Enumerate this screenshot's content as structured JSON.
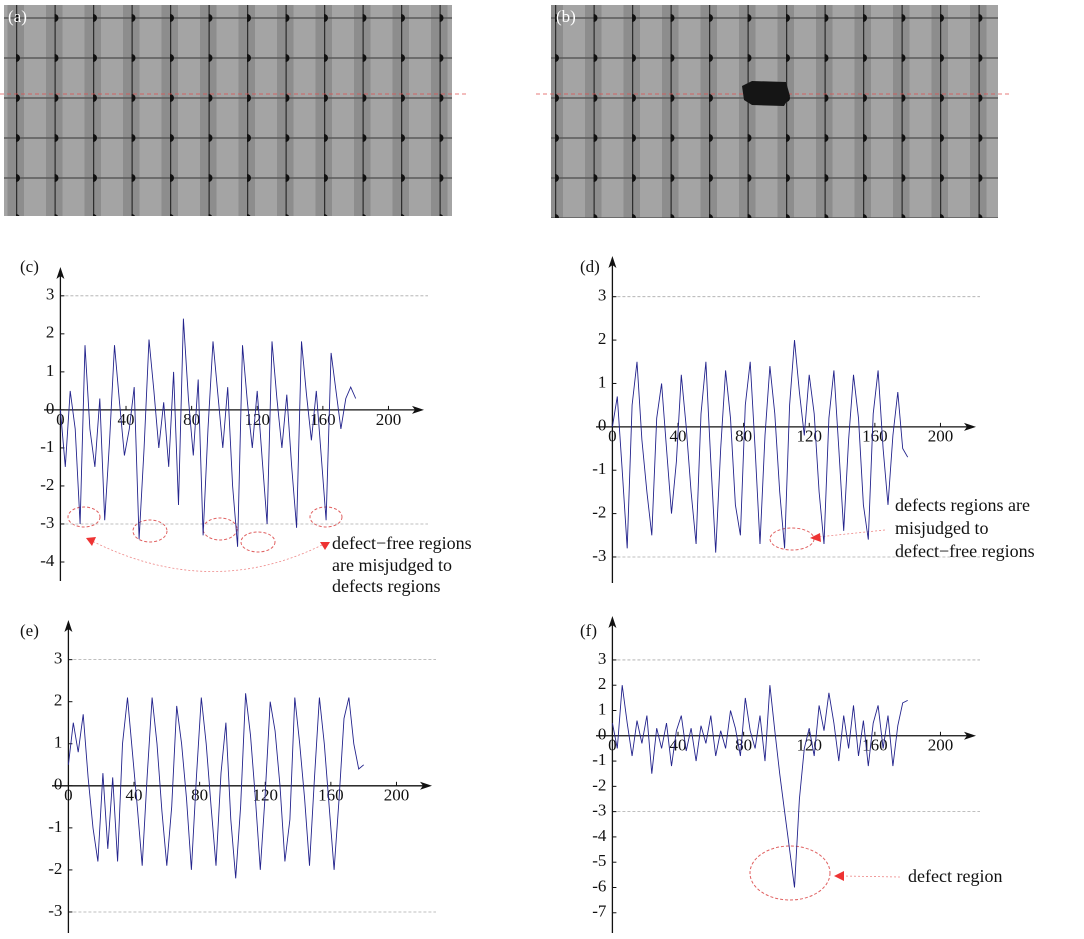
{
  "panels": [
    {
      "label": "(a)"
    },
    {
      "label": "(b)"
    }
  ],
  "chart_data": [
    {
      "type": "line",
      "label": "(c)",
      "color": "#23238c",
      "xlim": [
        -10,
        218
      ],
      "ylim": [
        -4.5,
        3.6
      ],
      "xticks": [
        0,
        40,
        80,
        120,
        160,
        200
      ],
      "yticks": [
        3,
        2,
        1,
        0,
        -1,
        -2,
        -3,
        -4
      ],
      "reference_lines": [
        3,
        -3
      ],
      "annotation": [
        "defect−free regions",
        "are misjudged to",
        "defects regions"
      ],
      "x": [
        0,
        3,
        6,
        9,
        12,
        15,
        18,
        21,
        24,
        27,
        30,
        33,
        36,
        39,
        42,
        45,
        48,
        51,
        54,
        57,
        60,
        63,
        66,
        69,
        72,
        75,
        78,
        81,
        84,
        87,
        90,
        93,
        96,
        99,
        102,
        105,
        108,
        111,
        114,
        117,
        120,
        123,
        126,
        129,
        132,
        135,
        138,
        141,
        144,
        147,
        150,
        153,
        156,
        159,
        162,
        165,
        168,
        171,
        174,
        177,
        180
      ],
      "values": [
        0,
        -1.5,
        0.5,
        -0.5,
        -3.0,
        1.7,
        -0.5,
        -1.5,
        0.3,
        -2.9,
        -0.8,
        1.7,
        0.2,
        -1.2,
        -0.5,
        0.6,
        -3.4,
        -1.0,
        1.85,
        0.5,
        -1.0,
        0.2,
        -1.5,
        1.0,
        -2.5,
        2.4,
        0.3,
        -1.2,
        0.8,
        -3.3,
        -0.5,
        1.8,
        0.4,
        -1.0,
        0.6,
        -2.0,
        -3.6,
        1.7,
        0.2,
        -1.0,
        0.5,
        -1.3,
        -3.0,
        1.8,
        0.3,
        -1.0,
        0.4,
        -1.5,
        -3.1,
        1.8,
        0.4,
        -0.8,
        0.5,
        -1.2,
        -2.9,
        1.5,
        0.5,
        -0.5,
        0.3,
        0.6,
        0.3
      ]
    },
    {
      "type": "line",
      "label": "(d)",
      "color": "#23238c",
      "xlim": [
        -10,
        218
      ],
      "ylim": [
        -3.6,
        3.8
      ],
      "xticks": [
        0,
        40,
        80,
        120,
        160,
        200
      ],
      "yticks": [
        3,
        2,
        1,
        0,
        -1,
        -2,
        -3
      ],
      "reference_lines": [
        3,
        -3
      ],
      "annotation": [
        "defects regions are",
        "misjudged to",
        "defect−free regions"
      ],
      "x": [
        0,
        3,
        6,
        9,
        12,
        15,
        18,
        21,
        24,
        27,
        30,
        33,
        36,
        39,
        42,
        45,
        48,
        51,
        54,
        57,
        60,
        63,
        66,
        69,
        72,
        75,
        78,
        81,
        84,
        87,
        90,
        93,
        96,
        99,
        102,
        105,
        108,
        111,
        114,
        117,
        120,
        123,
        126,
        129,
        132,
        135,
        138,
        141,
        144,
        147,
        150,
        153,
        156,
        159,
        162,
        165,
        168,
        171,
        174,
        177,
        180
      ],
      "values": [
        0,
        0.7,
        -1.0,
        -2.8,
        0.5,
        1.5,
        -0.3,
        -1.5,
        -2.5,
        0.2,
        1.0,
        -0.5,
        -2.0,
        -0.8,
        1.2,
        0.0,
        -1.5,
        -2.7,
        0.3,
        1.5,
        -0.8,
        -2.9,
        -0.5,
        1.3,
        0.2,
        -1.8,
        -2.5,
        0.5,
        1.5,
        -0.5,
        -2.7,
        -0.2,
        1.4,
        0.3,
        -1.5,
        -2.8,
        0.5,
        2.0,
        0.8,
        -0.2,
        1.2,
        0.3,
        -1.5,
        -2.7,
        0.2,
        1.3,
        -0.5,
        -2.4,
        -0.3,
        1.2,
        0.2,
        -1.8,
        -2.6,
        0.3,
        1.3,
        -0.5,
        -1.8,
        -0.2,
        0.8,
        -0.5,
        -0.7
      ]
    },
    {
      "type": "line",
      "label": "(e)",
      "color": "#23238c",
      "xlim": [
        -10,
        218
      ],
      "ylim": [
        -3.5,
        3.8
      ],
      "xticks": [
        0,
        40,
        80,
        120,
        160,
        200
      ],
      "yticks": [
        3,
        2,
        1,
        0,
        -1,
        -2,
        -3
      ],
      "reference_lines": [
        3,
        -3
      ],
      "x": [
        0,
        3,
        6,
        9,
        12,
        15,
        18,
        21,
        24,
        27,
        30,
        33,
        36,
        39,
        42,
        45,
        48,
        51,
        54,
        57,
        60,
        63,
        66,
        69,
        72,
        75,
        78,
        81,
        84,
        87,
        90,
        93,
        96,
        99,
        102,
        105,
        108,
        111,
        114,
        117,
        120,
        123,
        126,
        129,
        132,
        135,
        138,
        141,
        144,
        147,
        150,
        153,
        156,
        159,
        162,
        165,
        168,
        171,
        174,
        177,
        180
      ],
      "values": [
        0.5,
        1.5,
        0.8,
        1.7,
        0.2,
        -1.0,
        -1.8,
        0.3,
        -1.5,
        0.2,
        -1.8,
        1.0,
        2.1,
        0.8,
        -0.5,
        -1.9,
        0.2,
        2.1,
        1.0,
        -0.6,
        -1.9,
        -0.5,
        1.9,
        1.0,
        -0.3,
        -2.0,
        0.2,
        2.1,
        1.0,
        -0.5,
        -1.9,
        0.3,
        1.5,
        -0.8,
        -2.2,
        -0.5,
        2.2,
        1.2,
        -0.3,
        -2.0,
        -0.2,
        2.0,
        1.3,
        0.0,
        -1.8,
        -0.8,
        2.1,
        1.0,
        -0.3,
        -1.9,
        0.2,
        2.1,
        1.0,
        -0.5,
        -2.0,
        -0.3,
        1.6,
        2.1,
        1.0,
        0.4,
        0.5
      ]
    },
    {
      "type": "line",
      "label": "(f)",
      "color": "#23238c",
      "xlim": [
        -10,
        218
      ],
      "ylim": [
        -7.8,
        4.5
      ],
      "xticks": [
        0,
        40,
        80,
        120,
        160,
        200
      ],
      "yticks": [
        3,
        2,
        1,
        0,
        -1,
        -2,
        -3,
        -4,
        -5,
        -6,
        -7
      ],
      "reference_lines": [
        3,
        -3
      ],
      "annotation": [
        "defect region"
      ],
      "x": [
        0,
        3,
        6,
        9,
        12,
        15,
        18,
        21,
        24,
        27,
        30,
        33,
        36,
        39,
        42,
        45,
        48,
        51,
        54,
        57,
        60,
        63,
        66,
        69,
        72,
        75,
        78,
        81,
        84,
        87,
        90,
        93,
        96,
        99,
        102,
        105,
        108,
        111,
        114,
        117,
        120,
        123,
        126,
        129,
        132,
        135,
        138,
        141,
        144,
        147,
        150,
        153,
        156,
        159,
        162,
        165,
        168,
        171,
        174,
        177,
        180
      ],
      "values": [
        0.5,
        -0.5,
        2.0,
        0.5,
        -0.8,
        0.6,
        -0.3,
        0.8,
        -1.5,
        0.3,
        -0.5,
        0.5,
        -1.2,
        0.2,
        0.8,
        -0.6,
        0.3,
        -1.0,
        0.4,
        -0.3,
        0.8,
        -0.8,
        0.2,
        -0.5,
        1.0,
        0.3,
        -0.8,
        1.5,
        0.2,
        -0.5,
        0.8,
        -1.0,
        2.0,
        0.2,
        -1.5,
        -3.0,
        -4.5,
        -6.0,
        -2.5,
        -0.5,
        0.3,
        -0.8,
        1.2,
        0.2,
        1.7,
        0.5,
        -1.0,
        0.8,
        -0.5,
        1.2,
        -0.8,
        0.6,
        -1.2,
        0.5,
        1.2,
        -0.5,
        0.8,
        -1.2,
        0.4,
        1.3,
        1.4
      ]
    }
  ]
}
